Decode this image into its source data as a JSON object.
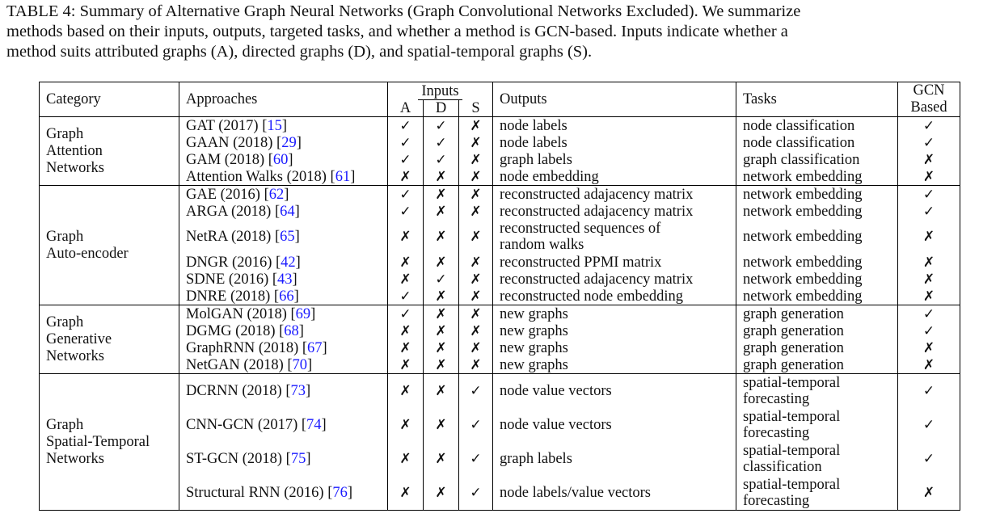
{
  "caption": {
    "line1": "TABLE 4: Summary of Alternative Graph Neural Networks (Graph Convolutional Networks Excluded). We summarize",
    "line2": "methods based on their inputs, outputs, targeted tasks, and whether a method is GCN-based. Inputs indicate whether a",
    "line3": "method suits attributed graphs (A), directed graphs (D), and spatial-temporal graphs (S)."
  },
  "header": {
    "category": "Category",
    "approaches": "Approaches",
    "inputs": "Inputs",
    "a": "A",
    "d": "D",
    "s": "S",
    "outputs": "Outputs",
    "tasks": "Tasks",
    "gcn_line1": "GCN",
    "gcn_line2": "Based"
  },
  "symbols": {
    "yes": "✓",
    "no": "✗"
  },
  "groups": [
    {
      "category_lines": [
        "Graph",
        "Attention",
        "Networks"
      ],
      "rows": [
        {
          "name": "GAT (2017) [",
          "ref": "15",
          "a": "✓",
          "d": "✓",
          "s": "✗",
          "outputs": [
            "node labels"
          ],
          "tasks": [
            "node classification"
          ],
          "gcn": "✓"
        },
        {
          "name": "GAAN (2018) [",
          "ref": "29",
          "a": "✓",
          "d": "✓",
          "s": "✗",
          "outputs": [
            "node labels"
          ],
          "tasks": [
            "node classification"
          ],
          "gcn": "✓"
        },
        {
          "name": "GAM (2018) [",
          "ref": "60",
          "a": "✓",
          "d": "✓",
          "s": "✗",
          "outputs": [
            "graph labels"
          ],
          "tasks": [
            "graph classification"
          ],
          "gcn": "✗"
        },
        {
          "name": "Attention Walks (2018) [",
          "ref": "61",
          "a": "✗",
          "d": "✗",
          "s": "✗",
          "outputs": [
            "node embedding"
          ],
          "tasks": [
            "network embedding"
          ],
          "gcn": "✗"
        }
      ]
    },
    {
      "category_lines": [
        "Graph",
        "Auto-encoder"
      ],
      "rows": [
        {
          "name": "GAE (2016) [",
          "ref": "62",
          "a": "✓",
          "d": "✗",
          "s": "✗",
          "outputs": [
            "reconstructed adajacency matrix"
          ],
          "tasks": [
            "network embedding"
          ],
          "gcn": "✓"
        },
        {
          "name": "ARGA (2018) [",
          "ref": "64",
          "a": "✓",
          "d": "✗",
          "s": "✗",
          "outputs": [
            "reconstructed adajacency matrix"
          ],
          "tasks": [
            "network embedding"
          ],
          "gcn": "✓"
        },
        {
          "name": "NetRA (2018) [",
          "ref": "65",
          "a": "✗",
          "d": "✗",
          "s": "✗",
          "outputs": [
            "reconstructed sequences of",
            "random walks"
          ],
          "tasks": [
            "network embedding"
          ],
          "gcn": "✗"
        },
        {
          "name": "DNGR (2016) [",
          "ref": "42",
          "a": "✗",
          "d": "✗",
          "s": "✗",
          "outputs": [
            "reconstructed PPMI matrix"
          ],
          "tasks": [
            "network embedding"
          ],
          "gcn": "✗"
        },
        {
          "name": "SDNE (2016) [",
          "ref": "43",
          "a": "✗",
          "d": "✓",
          "s": "✗",
          "outputs": [
            "reconstructed adajacency matrix"
          ],
          "tasks": [
            "network embedding"
          ],
          "gcn": "✗"
        },
        {
          "name": "DNRE (2018) [",
          "ref": "66",
          "a": "✓",
          "d": "✗",
          "s": "✗",
          "outputs": [
            "reconstructed node embedding"
          ],
          "tasks": [
            "network embedding"
          ],
          "gcn": "✗"
        }
      ]
    },
    {
      "category_lines": [
        "Graph",
        "Generative",
        "Networks"
      ],
      "rows": [
        {
          "name": "MolGAN (2018) [",
          "ref": "69",
          "a": "✓",
          "d": "✗",
          "s": "✗",
          "outputs": [
            "new graphs"
          ],
          "tasks": [
            "graph generation"
          ],
          "gcn": "✓"
        },
        {
          "name": "DGMG (2018) [",
          "ref": "68",
          "a": "✗",
          "d": "✗",
          "s": "✗",
          "outputs": [
            "new graphs"
          ],
          "tasks": [
            "graph generation"
          ],
          "gcn": "✓"
        },
        {
          "name": "GraphRNN (2018) [",
          "ref": "67",
          "a": "✗",
          "d": "✗",
          "s": "✗",
          "outputs": [
            "new graphs"
          ],
          "tasks": [
            "graph generation"
          ],
          "gcn": "✗"
        },
        {
          "name": "NetGAN (2018) [",
          "ref": "70",
          "a": "✗",
          "d": "✗",
          "s": "✗",
          "outputs": [
            "new graphs"
          ],
          "tasks": [
            "graph generation"
          ],
          "gcn": "✗"
        }
      ]
    },
    {
      "category_lines": [
        "Graph",
        "Spatial-Temporal",
        "Networks"
      ],
      "rows": [
        {
          "name": "DCRNN (2018) [",
          "ref": "73",
          "a": "✗",
          "d": "✗",
          "s": "✓",
          "outputs": [
            "node value vectors"
          ],
          "tasks": [
            "spatial-temporal",
            "forecasting"
          ],
          "gcn": "✓"
        },
        {
          "name": "CNN-GCN (2017) [",
          "ref": "74",
          "a": "✗",
          "d": "✗",
          "s": "✓",
          "outputs": [
            "node value vectors"
          ],
          "tasks": [
            "spatial-temporal",
            "forecasting"
          ],
          "gcn": "✓"
        },
        {
          "name": "ST-GCN (2018) [",
          "ref": "75",
          "a": "✗",
          "d": "✗",
          "s": "✓",
          "outputs": [
            "graph labels"
          ],
          "tasks": [
            "spatial-temporal",
            "classification"
          ],
          "gcn": "✓"
        },
        {
          "name": "Structural RNN (2016) [",
          "ref": "76",
          "a": "✗",
          "d": "✗",
          "s": "✓",
          "outputs": [
            "node labels/value vectors"
          ],
          "tasks": [
            "spatial-temporal",
            "forecasting"
          ],
          "gcn": "✗"
        }
      ]
    }
  ]
}
